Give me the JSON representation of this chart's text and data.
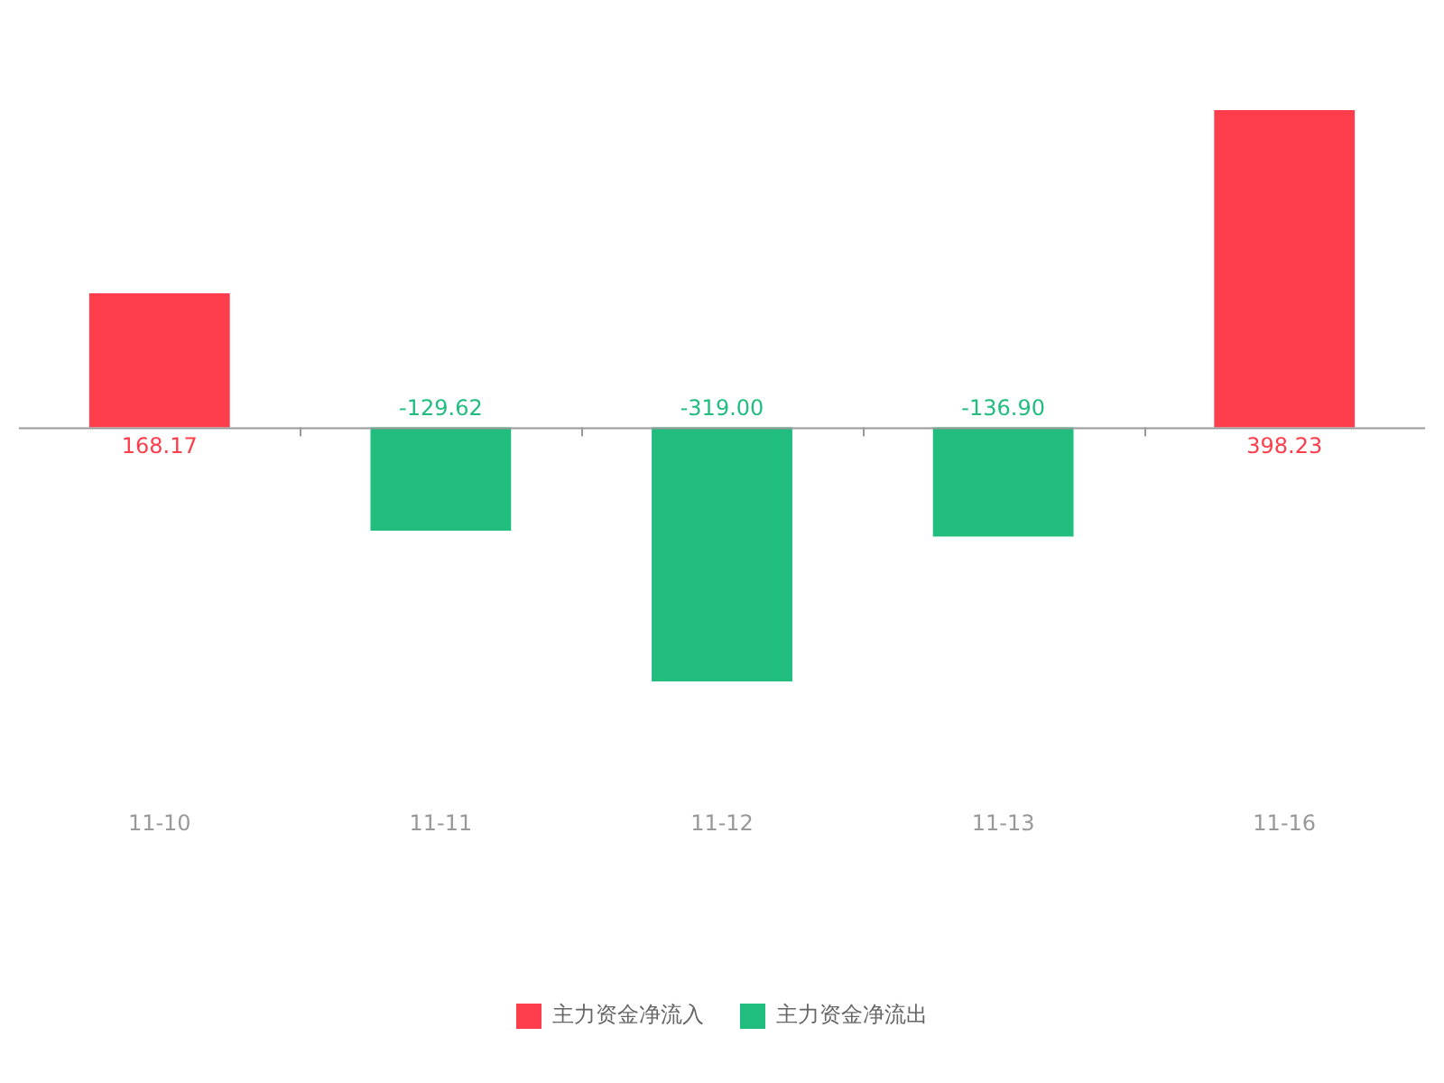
{
  "chart_data": {
    "type": "bar",
    "categories": [
      "11-10",
      "11-11",
      "11-12",
      "11-13",
      "11-16"
    ],
    "series": [
      {
        "name": "主力资金净流入",
        "color": "#fd3d4c",
        "values": [
          168.17,
          null,
          null,
          null,
          398.23
        ],
        "value_labels": [
          "168.17",
          null,
          null,
          null,
          "398.23"
        ]
      },
      {
        "name": "主力资金净流出",
        "color": "#20bd7f",
        "values": [
          null,
          -129.62,
          -319.0,
          -136.9,
          null
        ],
        "value_labels": [
          null,
          "-129.62",
          "-319.00",
          "-136.90",
          null
        ]
      }
    ],
    "stacked": true,
    "legend": "bottom",
    "grid": false
  }
}
